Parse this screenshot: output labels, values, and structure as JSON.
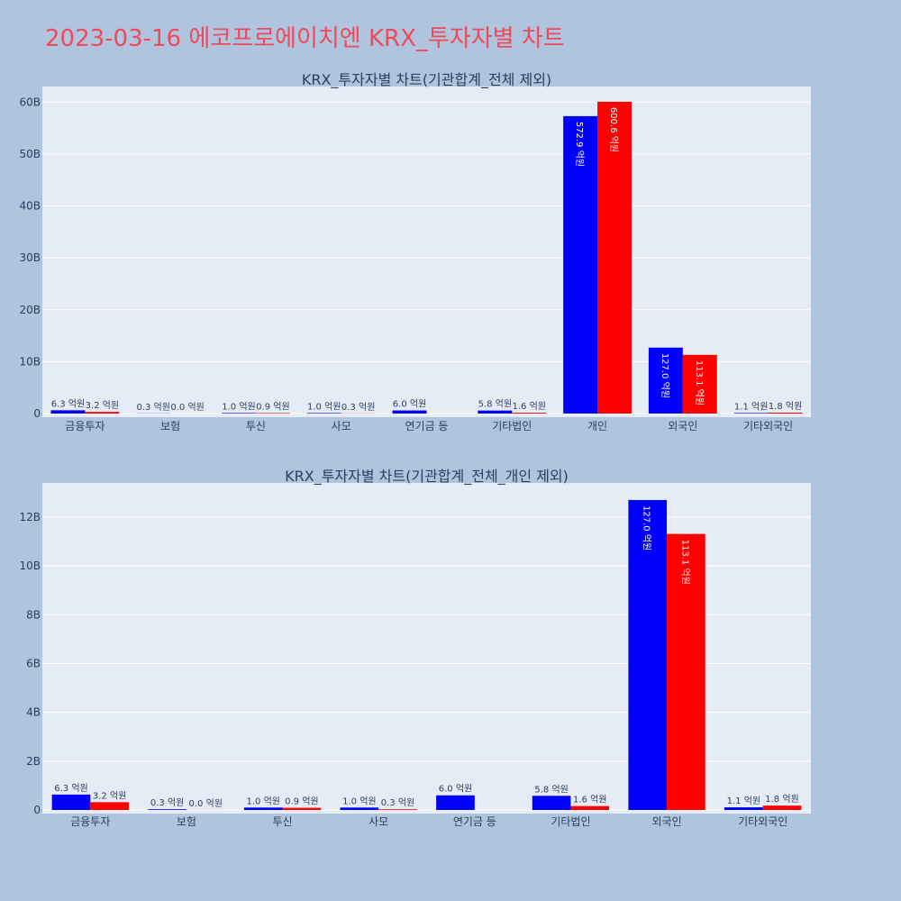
{
  "title": "2023-03-16 에코프로에이치엔 KRX_투자자별 차트",
  "colors": {
    "series_a": "#0000ff",
    "series_b": "#ff0000",
    "plot_bg": "#e5ecf6",
    "page_bg": "#b0c4de",
    "title": "#ef4a5a"
  },
  "chart_data": [
    {
      "type": "bar",
      "title": "KRX_투자자별 차트(기관합계_전체 제외)",
      "categories": [
        "금융투자",
        "보험",
        "투신",
        "사모",
        "연기금 등",
        "기타법인",
        "개인",
        "외국인",
        "기타외국인"
      ],
      "series": [
        {
          "values": [
            632000000,
            30000000,
            100000000,
            100000000,
            600000000,
            580000000,
            57290000000,
            12700000000,
            110000000
          ],
          "labels": [
            "6.3 억원",
            "0.3 억원",
            "1.0 억원",
            "1.0 억원",
            "6.0 억원",
            "5.8 억원",
            "572.9 억원",
            "127.0 억원",
            "1.1 억원"
          ]
        },
        {
          "values": [
            320000000,
            2000000,
            90000000,
            30000000,
            0,
            160000000,
            60060000000,
            11310000000,
            180000000
          ],
          "labels": [
            "3.2 억원",
            "0.0 억원",
            "0.9 억원",
            "0.3 억원",
            "",
            "1.6 억원",
            "600.6 억원",
            "113.1 억원",
            "1.8 억원"
          ]
        }
      ],
      "ylim": [
        0,
        63000000000
      ],
      "yticks": [
        0,
        10000000000,
        20000000000,
        30000000000,
        40000000000,
        50000000000,
        60000000000
      ],
      "ytick_labels": [
        "0",
        "10B",
        "20B",
        "30B",
        "40B",
        "50B",
        "60B"
      ],
      "grid": true,
      "legend": "none"
    },
    {
      "type": "bar",
      "title": "KRX_투자자별 차트(기관합계_전체_개인 제외)",
      "categories": [
        "금융투자",
        "보험",
        "투신",
        "사모",
        "연기금 등",
        "기타법인",
        "외국인",
        "기타외국인"
      ],
      "series": [
        {
          "values": [
            632000000,
            30000000,
            100000000,
            100000000,
            600000000,
            580000000,
            12700000000,
            110000000
          ],
          "labels": [
            "6.3 억원",
            "0.3 억원",
            "1.0 억원",
            "1.0 억원",
            "6.0 억원",
            "5.8 억원",
            "127.0 억원",
            "1.1 억원"
          ]
        },
        {
          "values": [
            320000000,
            2000000,
            90000000,
            30000000,
            0,
            160000000,
            11310000000,
            180000000
          ],
          "labels": [
            "3.2 억원",
            "0.0 억원",
            "0.9 억원",
            "0.3 억원",
            "",
            "1.6 억원",
            "113.1 억원",
            "1.8 억원"
          ]
        }
      ],
      "ylim": [
        0,
        13400000000
      ],
      "yticks": [
        0,
        2000000000,
        4000000000,
        6000000000,
        8000000000,
        10000000000,
        12000000000
      ],
      "ytick_labels": [
        "0",
        "2B",
        "4B",
        "6B",
        "8B",
        "10B",
        "12B"
      ],
      "grid": true,
      "legend": "none"
    }
  ]
}
